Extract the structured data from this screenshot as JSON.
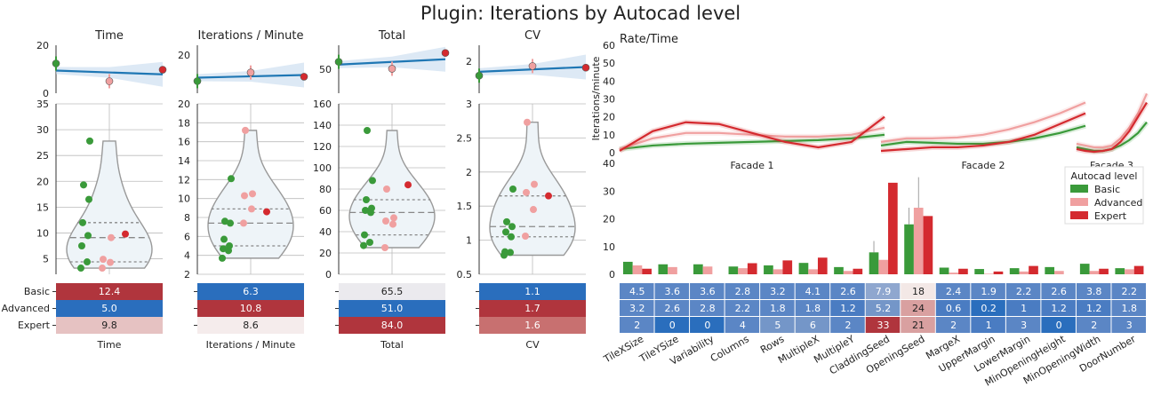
{
  "suptitle": "Plugin: Iterations by Autocad level",
  "levels": [
    "Basic",
    "Advanced",
    "Expert"
  ],
  "colors": {
    "Basic": "#3a9a3a",
    "Advanced": "#f0a0a0",
    "Expert": "#d42a2f",
    "trend": "#1f77b4",
    "violet_fill": "#eef4f8",
    "violin_line": "#999999"
  },
  "metrics": [
    {
      "title": "Time",
      "xlabel": "Time",
      "top_ticks": [
        "0",
        "20"
      ],
      "top_ylim": [
        0,
        20
      ],
      "trend": [
        12.4,
        5.0,
        9.8
      ],
      "ylim": [
        2,
        35
      ],
      "yticks": [
        5,
        10,
        15,
        20,
        25,
        30,
        35
      ],
      "points": {
        "Basic": [
          3.2,
          4.4,
          7.5,
          9.5,
          12.0,
          16.5,
          19.3,
          27.8
        ],
        "Advanced": [
          3.2,
          4.3,
          4.9,
          9.1
        ],
        "Expert": [
          9.8
        ]
      },
      "table": [
        "12.4",
        "5.0",
        "9.8"
      ],
      "table_colors": [
        "#b0353d",
        "#2a6ebd",
        "#e6c2c2"
      ]
    },
    {
      "title": "Iterations / Minute",
      "xlabel": "Iterations / Minute",
      "top_ticks": [
        "20"
      ],
      "top_ylim": [
        0,
        25
      ],
      "trend": [
        6.3,
        10.8,
        8.6
      ],
      "ylim": [
        2,
        20
      ],
      "yticks": [
        2,
        4,
        6,
        8,
        10,
        12,
        14,
        16,
        18,
        20
      ],
      "points": {
        "Basic": [
          3.7,
          4.5,
          4.7,
          5.0,
          5.7,
          7.4,
          7.6,
          12.1
        ],
        "Advanced": [
          7.4,
          8.9,
          10.3,
          10.5,
          17.2
        ],
        "Expert": [
          8.6
        ]
      },
      "table": [
        "6.3",
        "10.8",
        "8.6"
      ],
      "table_colors": [
        "#2a6ebd",
        "#b0353d",
        "#f5ecec"
      ]
    },
    {
      "title": "Total",
      "xlabel": "Total",
      "top_ticks": [
        "50"
      ],
      "top_ylim": [
        0,
        100
      ],
      "trend": [
        65.5,
        51.0,
        84.0
      ],
      "ylim": [
        0,
        160
      ],
      "yticks": [
        0,
        20,
        40,
        60,
        80,
        100,
        120,
        140,
        160
      ],
      "points": {
        "Basic": [
          27,
          30,
          37,
          58,
          60,
          62,
          70,
          88,
          135
        ],
        "Advanced": [
          25,
          47,
          50,
          53,
          80
        ],
        "Expert": [
          84
        ]
      },
      "table": [
        "65.5",
        "51.0",
        "84.0"
      ],
      "table_colors": [
        "#ebeaee",
        "#2a6ebd",
        "#b0353d"
      ]
    },
    {
      "title": "CV",
      "xlabel": "CV",
      "top_ticks": [
        "2"
      ],
      "top_ylim": [
        0,
        3
      ],
      "trend": [
        1.1,
        1.7,
        1.6
      ],
      "ylim": [
        0.5,
        3.0
      ],
      "yticks": [
        0.5,
        1.0,
        1.5,
        2.0,
        2.5,
        3.0
      ],
      "points": {
        "Basic": [
          0.78,
          0.82,
          0.83,
          1.05,
          1.12,
          1.2,
          1.27,
          1.75
        ],
        "Advanced": [
          1.06,
          1.45,
          1.7,
          1.82,
          2.73
        ],
        "Expert": [
          1.65
        ]
      },
      "table": [
        "1.1",
        "1.7",
        "1.6"
      ],
      "table_colors": [
        "#2a6ebd",
        "#b0353d",
        "#c87070"
      ]
    }
  ],
  "rate": {
    "title": "Rate/Time",
    "ylabel": "Iterations/minute",
    "yticks": [
      0,
      10,
      20,
      30,
      40,
      50,
      60
    ],
    "facets": [
      "Facade 1",
      "Facade 2",
      "Facade 3"
    ]
  },
  "bars": {
    "legend_title": "Autocad level",
    "ylim": [
      0,
      40
    ],
    "yticks": [
      0,
      10,
      20,
      30,
      40
    ],
    "categories": [
      "TileXSize",
      "TileYSize",
      "Variability",
      "Columns",
      "Rows",
      "MultipleX",
      "MultipleY",
      "CladdingSeed",
      "OpeningSeed",
      "MargeX",
      "UpperMargin",
      "LowerMargin",
      "MinOpeningHeight",
      "MinOpeningWidth",
      "DoorNumber"
    ],
    "series": [
      {
        "name": "Basic",
        "values": [
          4.5,
          3.6,
          3.6,
          2.8,
          3.2,
          4.1,
          2.6,
          7.9,
          18,
          2.4,
          1.9,
          2.2,
          2.6,
          3.8,
          2.2
        ]
      },
      {
        "name": "Advanced",
        "values": [
          3.2,
          2.6,
          2.8,
          2.2,
          1.8,
          1.8,
          1.2,
          5.2,
          24,
          0.6,
          0.2,
          1,
          1.2,
          1.2,
          1.8
        ]
      },
      {
        "name": "Expert",
        "values": [
          2,
          0,
          0,
          4,
          5,
          6,
          2,
          33,
          21,
          2,
          1,
          3,
          0,
          2,
          3
        ]
      }
    ],
    "table": [
      [
        "4.5",
        "3.6",
        "3.6",
        "2.8",
        "3.2",
        "4.1",
        "2.6",
        "7.9",
        "18",
        "2.4",
        "1.9",
        "2.2",
        "2.6",
        "3.8",
        "2.2"
      ],
      [
        "3.2",
        "2.6",
        "2.8",
        "2.2",
        "1.8",
        "1.8",
        "1.2",
        "5.2",
        "24",
        "0.6",
        "0.2",
        "1",
        "1.2",
        "1.2",
        "1.8"
      ],
      [
        "2",
        "0",
        "0",
        "4",
        "5",
        "6",
        "2",
        "33",
        "21",
        "2",
        "1",
        "3",
        "0",
        "2",
        "3"
      ]
    ]
  }
}
